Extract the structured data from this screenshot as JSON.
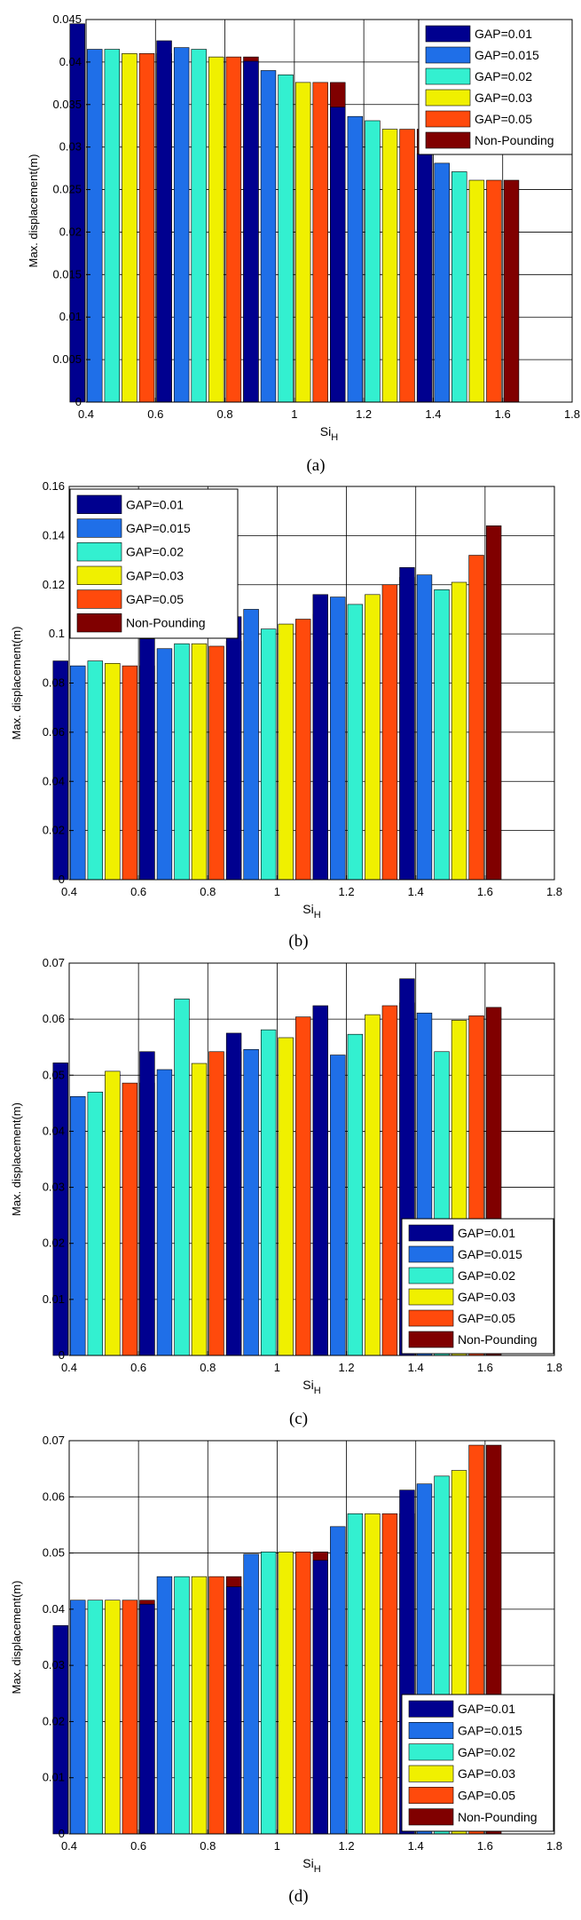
{
  "chart_data": [
    {
      "panel_label": "(a)",
      "type": "bar",
      "xlabel_main": "Si",
      "xlabel_sub": "H",
      "ylabel": "Max. displacement(m)",
      "xlim": [
        0.4,
        1.8
      ],
      "ylim": [
        0,
        0.045
      ],
      "x_ticks": [
        "0.4",
        "0.6",
        "0.8",
        "1",
        "1.2",
        "1.4",
        "1.6",
        "1.8"
      ],
      "y_ticks": [
        "0",
        "0.005",
        "0.01",
        "0.015",
        "0.02",
        "0.025",
        "0.03",
        "0.035",
        "0.04",
        "0.045"
      ],
      "legend_position": "top-right",
      "grid": true,
      "x": [
        0.5,
        0.75,
        1.0,
        1.25,
        1.5
      ],
      "series": [
        {
          "name": "GAP=0.01",
          "values": [
            0.0445,
            0.0425,
            0.0401,
            0.0347,
            0.0292
          ]
        },
        {
          "name": "GAP=0.015",
          "values": [
            0.0415,
            0.0417,
            0.039,
            0.0336,
            0.0281
          ]
        },
        {
          "name": "GAP=0.02",
          "values": [
            0.0415,
            0.0415,
            0.0385,
            0.0331,
            0.0271
          ]
        },
        {
          "name": "GAP=0.03",
          "values": [
            0.041,
            0.0406,
            0.0376,
            0.0321,
            0.0261
          ]
        },
        {
          "name": "GAP=0.05",
          "values": [
            0.041,
            0.0406,
            0.0376,
            0.0321,
            0.0261
          ]
        },
        {
          "name": "Non-Pounding",
          "values": [
            0.041,
            0.0406,
            0.0376,
            0.0321,
            0.0261
          ]
        }
      ]
    },
    {
      "panel_label": "(b)",
      "type": "bar",
      "xlabel_main": "Si",
      "xlabel_sub": "H",
      "ylabel": "Max. displacement(m)",
      "xlim": [
        0.4,
        1.8
      ],
      "ylim": [
        0,
        0.16
      ],
      "x_ticks": [
        "0.4",
        "0.6",
        "0.8",
        "1",
        "1.2",
        "1.4",
        "1.6",
        "1.8"
      ],
      "y_ticks": [
        "0",
        "0.02",
        "0.04",
        "0.06",
        "0.08",
        "0.1",
        "0.12",
        "0.14",
        "0.16"
      ],
      "legend_position": "top-left",
      "grid": true,
      "x": [
        0.5,
        0.75,
        1.0,
        1.25,
        1.5
      ],
      "series": [
        {
          "name": "GAP=0.01",
          "values": [
            0.089,
            0.098,
            0.107,
            0.116,
            0.127
          ]
        },
        {
          "name": "GAP=0.015",
          "values": [
            0.087,
            0.094,
            0.11,
            0.115,
            0.124
          ]
        },
        {
          "name": "GAP=0.02",
          "values": [
            0.089,
            0.096,
            0.102,
            0.112,
            0.118
          ]
        },
        {
          "name": "GAP=0.03",
          "values": [
            0.088,
            0.096,
            0.104,
            0.116,
            0.121
          ]
        },
        {
          "name": "GAP=0.05",
          "values": [
            0.087,
            0.095,
            0.106,
            0.12,
            0.132
          ]
        },
        {
          "name": "Non-Pounding",
          "values": [
            0.087,
            0.097,
            0.108,
            0.123,
            0.144
          ]
        }
      ]
    },
    {
      "panel_label": "(c)",
      "type": "bar",
      "xlabel_main": "Si",
      "xlabel_sub": "H",
      "ylabel": "Max. displacement(m)",
      "xlim": [
        0.4,
        1.8
      ],
      "ylim": [
        0,
        0.07
      ],
      "x_ticks": [
        "0.4",
        "0.6",
        "0.8",
        "1",
        "1.2",
        "1.4",
        "1.6",
        "1.8"
      ],
      "y_ticks": [
        "0",
        "0.01",
        "0.02",
        "0.03",
        "0.04",
        "0.05",
        "0.06",
        "0.07"
      ],
      "legend_position": "bottom-right",
      "grid": true,
      "x": [
        0.5,
        0.75,
        1.0,
        1.25,
        1.5
      ],
      "series": [
        {
          "name": "GAP=0.01",
          "values": [
            0.0522,
            0.0542,
            0.0575,
            0.0624,
            0.0672
          ]
        },
        {
          "name": "GAP=0.015",
          "values": [
            0.0462,
            0.051,
            0.0546,
            0.0536,
            0.0611
          ]
        },
        {
          "name": "GAP=0.02",
          "values": [
            0.047,
            0.0636,
            0.0581,
            0.0573,
            0.0542
          ]
        },
        {
          "name": "GAP=0.03",
          "values": [
            0.0507,
            0.0521,
            0.0567,
            0.0608,
            0.0598
          ]
        },
        {
          "name": "GAP=0.05",
          "values": [
            0.0486,
            0.0542,
            0.0604,
            0.0624,
            0.0606
          ]
        },
        {
          "name": "Non-Pounding",
          "values": [
            0.0486,
            0.0542,
            0.0604,
            0.0629,
            0.0621
          ]
        }
      ]
    },
    {
      "panel_label": "(d)",
      "type": "bar",
      "xlabel_main": "Si",
      "xlabel_sub": "H",
      "ylabel": "Max. displacement(m)",
      "xlim": [
        0.4,
        1.8
      ],
      "ylim": [
        0,
        0.07
      ],
      "x_ticks": [
        "0.4",
        "0.6",
        "0.8",
        "1",
        "1.2",
        "1.4",
        "1.6",
        "1.8"
      ],
      "y_ticks": [
        "0",
        "0.01",
        "0.02",
        "0.03",
        "0.04",
        "0.05",
        "0.06",
        "0.07"
      ],
      "legend_position": "bottom-right",
      "grid": true,
      "x": [
        0.5,
        0.75,
        1.0,
        1.25,
        1.5
      ],
      "series": [
        {
          "name": "GAP=0.01",
          "values": [
            0.0371,
            0.0409,
            0.044,
            0.0487,
            0.0612
          ]
        },
        {
          "name": "GAP=0.015",
          "values": [
            0.0416,
            0.0458,
            0.0498,
            0.0547,
            0.0623
          ]
        },
        {
          "name": "GAP=0.02",
          "values": [
            0.0416,
            0.0458,
            0.0502,
            0.057,
            0.0637
          ]
        },
        {
          "name": "GAP=0.03",
          "values": [
            0.0416,
            0.0458,
            0.0502,
            0.057,
            0.0647
          ]
        },
        {
          "name": "GAP=0.05",
          "values": [
            0.0416,
            0.0458,
            0.0502,
            0.057,
            0.0692
          ]
        },
        {
          "name": "Non-Pounding",
          "values": [
            0.0416,
            0.0458,
            0.0502,
            0.057,
            0.0692
          ]
        }
      ]
    }
  ],
  "colors": [
    "#00008F",
    "#1F6FE8",
    "#33F0D0",
    "#F0F000",
    "#FF4A0C",
    "#800000"
  ]
}
